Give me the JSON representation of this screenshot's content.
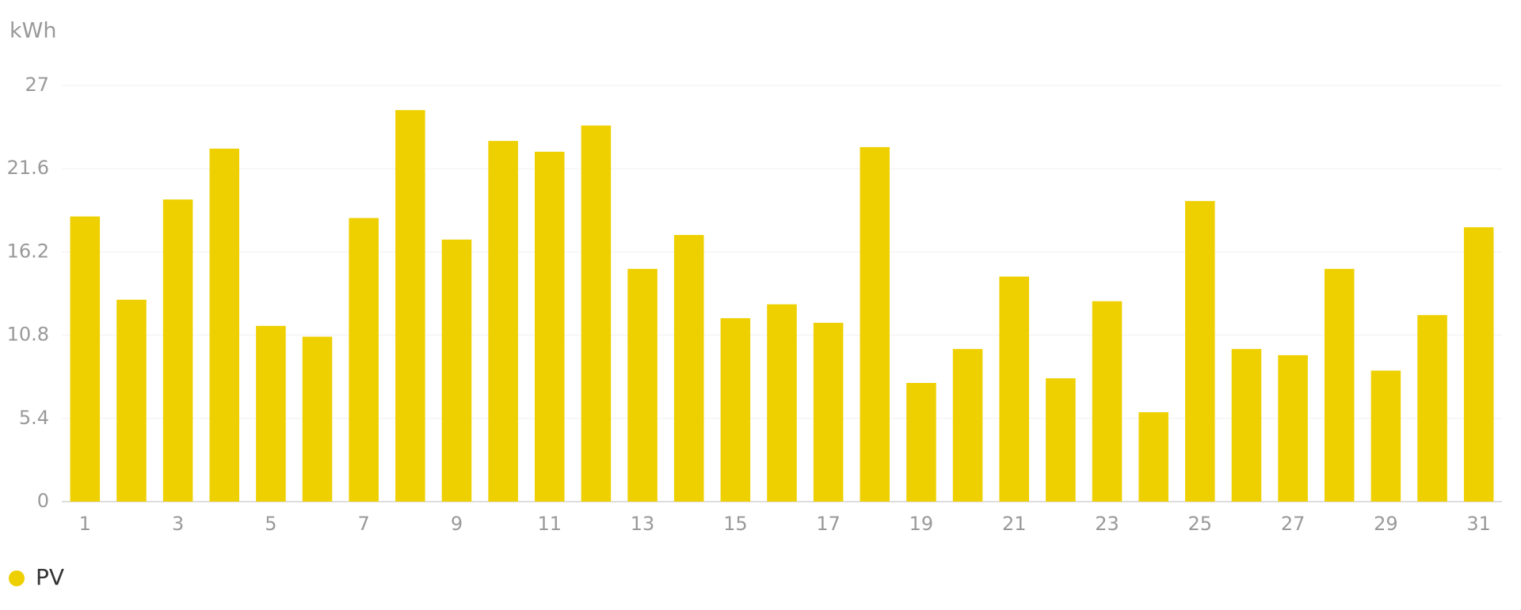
{
  "chart_data": {
    "type": "bar",
    "y_axis_label": "kWh",
    "categories": [
      1,
      null,
      3,
      null,
      5,
      null,
      7,
      null,
      9,
      null,
      11,
      null,
      13,
      null,
      15,
      null,
      17,
      null,
      19,
      null,
      21,
      null,
      23,
      null,
      25,
      null,
      27,
      null,
      29,
      null,
      31
    ],
    "series": [
      {
        "name": "PV",
        "color": "#eed000",
        "values": [
          18.5,
          13.1,
          19.6,
          22.9,
          11.4,
          10.7,
          18.4,
          25.4,
          17.0,
          23.4,
          22.7,
          24.4,
          15.1,
          17.3,
          11.9,
          12.8,
          11.6,
          23.0,
          7.7,
          9.9,
          14.6,
          8.0,
          13.0,
          5.8,
          19.5,
          9.9,
          9.5,
          15.1,
          8.5,
          12.1,
          17.8
        ]
      }
    ],
    "ylim": [
      0,
      27
    ],
    "yticks": [
      0,
      5.4,
      10.8,
      16.2,
      21.6,
      27
    ],
    "grid": true
  }
}
